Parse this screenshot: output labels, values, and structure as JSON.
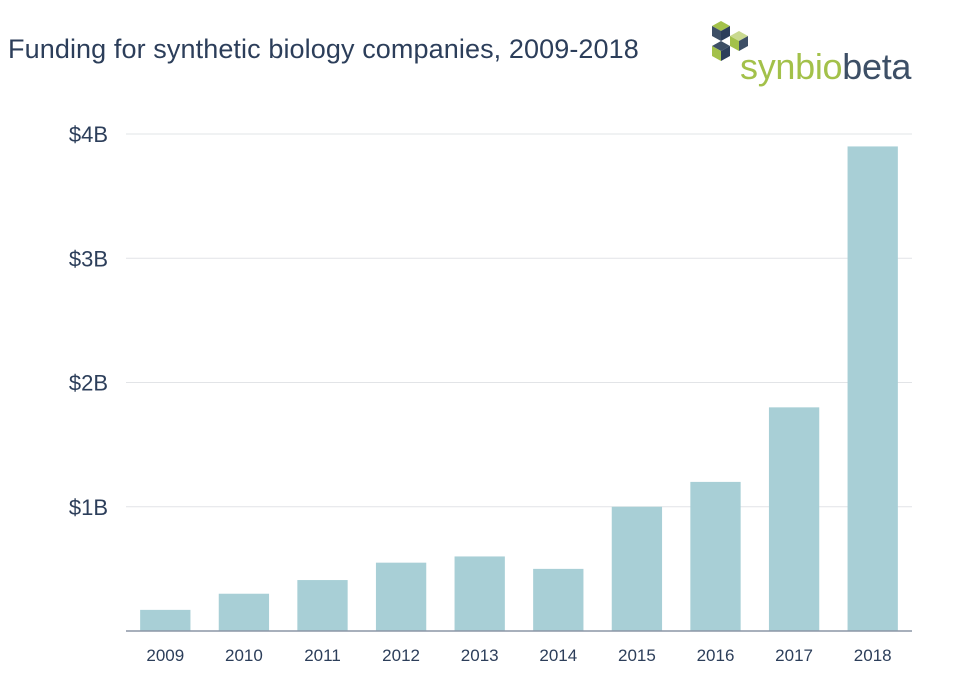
{
  "header": {
    "title": "Funding for synthetic biology companies, 2009-2018"
  },
  "logo": {
    "text_part1": "synbio",
    "text_part2": "beta"
  },
  "colors": {
    "bar": "#a8cfd6",
    "grid": "#e2e4e7",
    "axis": "#8b95a5",
    "text": "#2c3e5a",
    "logo_green": "#a3c14a",
    "logo_navy": "#3d4f66"
  },
  "chart_data": {
    "type": "bar",
    "title": "Funding for synthetic biology companies, 2009-2018",
    "xlabel": "",
    "ylabel": "",
    "categories": [
      "2009",
      "2010",
      "2011",
      "2012",
      "2013",
      "2014",
      "2015",
      "2016",
      "2017",
      "2018"
    ],
    "values": [
      0.17,
      0.3,
      0.41,
      0.55,
      0.6,
      0.5,
      1.0,
      1.2,
      1.8,
      3.9
    ],
    "unit": "billion USD",
    "ylim": [
      0,
      4
    ],
    "yticks": [
      {
        "value": 1,
        "label": "$1B"
      },
      {
        "value": 2,
        "label": "$2B"
      },
      {
        "value": 3,
        "label": "$3B"
      },
      {
        "value": 4,
        "label": "$4B"
      }
    ],
    "grid": true,
    "legend": "none"
  }
}
